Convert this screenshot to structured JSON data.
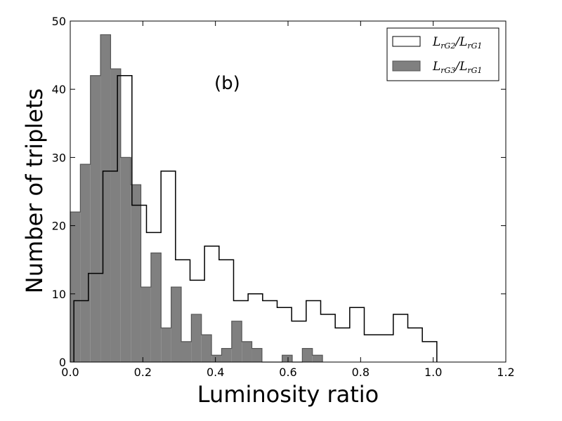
{
  "chart_data": {
    "type": "histogram",
    "xlabel": "Luminosity ratio",
    "ylabel": "Number of triplets",
    "annotation": "(b)",
    "xlim": [
      0.0,
      1.2
    ],
    "ylim": [
      0,
      50
    ],
    "xticks": [
      "0.0",
      "0.2",
      "0.4",
      "0.6",
      "0.8",
      "1.0",
      "1.2"
    ],
    "yticks": [
      "0",
      "10",
      "20",
      "30",
      "40",
      "50"
    ],
    "legend_position": "top-right",
    "series": [
      {
        "name": "L_rG2/L_rG1",
        "style": "step-outline",
        "color": "#000000",
        "bin_edges": [
          0.01,
          0.05,
          0.09,
          0.13,
          0.17,
          0.21,
          0.25,
          0.29,
          0.33,
          0.37,
          0.41,
          0.45,
          0.49,
          0.53,
          0.57,
          0.61,
          0.65,
          0.69,
          0.73,
          0.77,
          0.81,
          0.85,
          0.89,
          0.93,
          0.97,
          1.01
        ],
        "counts": [
          9,
          13,
          28,
          42,
          23,
          19,
          28,
          15,
          12,
          17,
          15,
          9,
          10,
          9,
          8,
          6,
          9,
          7,
          5,
          8,
          4,
          4,
          7,
          5,
          3
        ]
      },
      {
        "name": "L_rG3/L_rG1",
        "style": "filled",
        "color": "#808080",
        "bin_edges": [
          0.0,
          0.0278,
          0.0556,
          0.0834,
          0.1112,
          0.139,
          0.1668,
          0.1946,
          0.2224,
          0.2502,
          0.278,
          0.3058,
          0.3336,
          0.3614,
          0.3892,
          0.417,
          0.4448,
          0.4726,
          0.5004,
          0.5282,
          0.556,
          0.5838,
          0.6116,
          0.6394,
          0.6672,
          0.695
        ],
        "counts": [
          22,
          29,
          42,
          48,
          43,
          30,
          26,
          11,
          16,
          5,
          11,
          3,
          7,
          4,
          1,
          2,
          6,
          3,
          2,
          0,
          0,
          1,
          0,
          2,
          1
        ]
      }
    ]
  },
  "legend": {
    "items": [
      {
        "num": "L",
        "num_sub": "rG2",
        "den": "L",
        "den_sub": "rG1",
        "swatch": "#ffffff"
      },
      {
        "num": "L",
        "num_sub": "rG3",
        "den": "L",
        "den_sub": "rG1",
        "swatch": "#808080"
      }
    ]
  }
}
